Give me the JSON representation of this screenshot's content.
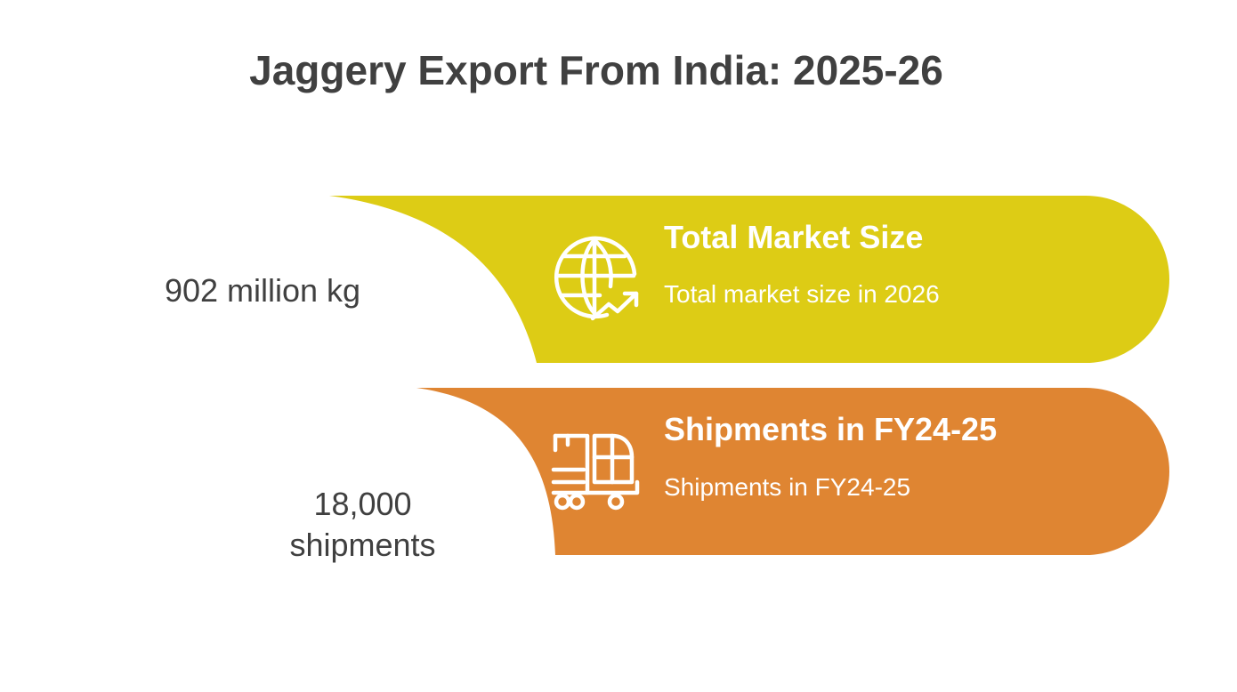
{
  "title": "Jaggery Export From India: 2025-26",
  "colors": {
    "card_1": "#DDCC15",
    "card_2": "#DF8532",
    "text_dark": "#404040",
    "text_light": "#FFFFFF"
  },
  "items": [
    {
      "value": "902 million kg",
      "heading": "Total Market Size",
      "description": "Total market size in 2026",
      "icon": "globe-trend-icon"
    },
    {
      "value_line1": "18,000",
      "value_line2": "shipments",
      "heading": "Shipments in FY24-25",
      "description": "Shipments in FY24-25",
      "icon": "delivery-truck-icon"
    }
  ]
}
